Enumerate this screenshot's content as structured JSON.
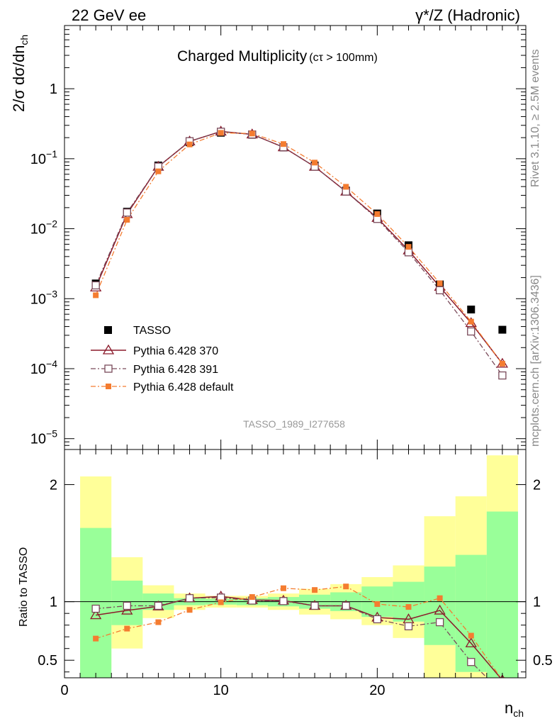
{
  "header": {
    "left_label": "22 GeV ee",
    "right_label": "γ*/Z (Hadronic)"
  },
  "side_labels": {
    "rivet": "Rivet 3.1.10, ≥ 2.5M events",
    "mcplots": "mcplots.cern.ch [arXiv:1306.3436]"
  },
  "watermark": "TASSO_1989_I277658",
  "colors": {
    "data": "#000000",
    "pythia_370": "#8b1a2b",
    "pythia_391": "#7a4a5a",
    "pythia_default": "#f47c30",
    "band_inner": "#99ff99",
    "band_outer": "#ffff99"
  },
  "chart_data": [
    {
      "type": "line",
      "title": "Charged Multiplicity",
      "title_suffix": "(cτ > 100mm)",
      "ylabel": "2/σ dσ/dn",
      "ylabel_sub": "ch",
      "y_scale": "log",
      "ylim": [
        7e-06,
        8
      ],
      "xlim": [
        0,
        29.5
      ],
      "y_ticks": [
        {
          "base": "10",
          "exp": "−5",
          "value": 1e-05
        },
        {
          "base": "10",
          "exp": "−4",
          "value": 0.0001
        },
        {
          "base": "10",
          "exp": "−3",
          "value": 0.001
        },
        {
          "base": "10",
          "exp": "−2",
          "value": 0.01
        },
        {
          "base": "10",
          "exp": "−1",
          "value": 0.1
        },
        {
          "base": "1",
          "exp": "",
          "value": 1
        }
      ],
      "x": [
        2,
        4,
        6,
        8,
        10,
        12,
        14,
        16,
        18,
        20,
        22,
        24,
        26,
        28
      ],
      "series": [
        {
          "name": "TASSO",
          "style": "data",
          "values": [
            0.00165,
            0.0175,
            0.08,
            0.172,
            0.235,
            0.22,
            0.145,
            0.08,
            0.035,
            0.0165,
            0.0058,
            0.0016,
            0.0007,
            0.00036
          ]
        },
        {
          "name": "Pythia 6.428 370",
          "style": "p370",
          "values": [
            0.00145,
            0.0162,
            0.077,
            0.177,
            0.245,
            0.223,
            0.146,
            0.077,
            0.034,
            0.0143,
            0.0049,
            0.00148,
            0.00045,
            0.000118
          ]
        },
        {
          "name": "Pythia 6.428 391",
          "style": "p391",
          "values": [
            0.00155,
            0.017,
            0.077,
            0.178,
            0.243,
            0.222,
            0.146,
            0.077,
            0.034,
            0.0138,
            0.0046,
            0.00132,
            0.00034,
            8e-05
          ]
        },
        {
          "name": "Pythia 6.428 default",
          "style": "pdef",
          "values": [
            0.00112,
            0.0134,
            0.066,
            0.16,
            0.234,
            0.229,
            0.162,
            0.088,
            0.0397,
            0.0162,
            0.0055,
            0.00166,
            0.00047,
            0.000118
          ]
        }
      ]
    },
    {
      "type": "line",
      "ylabel": "Ratio to TASSO",
      "xlabel": "n",
      "xlabel_sub": "ch",
      "ylim": [
        0.35,
        2.3
      ],
      "xlim": [
        0,
        29.5
      ],
      "y_ticks": [
        {
          "label": "0.5",
          "value": 0.5
        },
        {
          "label": "1",
          "value": 1
        },
        {
          "label": "2",
          "value": 2
        }
      ],
      "x_ticks": [
        {
          "label": "0",
          "value": 0
        },
        {
          "label": "10",
          "value": 10
        },
        {
          "label": "20",
          "value": 20
        }
      ],
      "bins": [
        [
          1,
          3
        ],
        [
          3,
          5
        ],
        [
          5,
          7
        ],
        [
          7,
          9
        ],
        [
          9,
          11
        ],
        [
          11,
          13
        ],
        [
          13,
          15
        ],
        [
          15,
          17
        ],
        [
          17,
          19
        ],
        [
          19,
          21
        ],
        [
          21,
          23
        ],
        [
          23,
          25
        ],
        [
          25,
          27
        ],
        [
          27,
          29
        ]
      ],
      "band_inner": [
        [
          0.35,
          1.63
        ],
        [
          0.8,
          1.18
        ],
        [
          0.93,
          1.07
        ],
        [
          0.97,
          1.03
        ],
        [
          0.975,
          1.025
        ],
        [
          0.97,
          1.03
        ],
        [
          0.96,
          1.04
        ],
        [
          0.94,
          1.06
        ],
        [
          0.92,
          1.08
        ],
        [
          0.87,
          1.13
        ],
        [
          0.83,
          1.17
        ],
        [
          0.63,
          1.3
        ],
        [
          0.4,
          1.4
        ],
        [
          0.35,
          1.77
        ]
      ],
      "band_outer": [
        [
          0.43,
          2.07
        ],
        [
          0.6,
          1.38
        ],
        [
          0.86,
          1.14
        ],
        [
          0.93,
          1.07
        ],
        [
          0.95,
          1.05
        ],
        [
          0.95,
          1.05
        ],
        [
          0.93,
          1.07
        ],
        [
          0.89,
          1.11
        ],
        [
          0.85,
          1.15
        ],
        [
          0.8,
          1.21
        ],
        [
          0.69,
          1.31
        ],
        [
          0.35,
          1.73
        ],
        [
          0.35,
          1.9
        ],
        [
          0.35,
          2.25
        ]
      ],
      "series": [
        {
          "name": "Pythia 6.428 370",
          "style": "p370",
          "values": [
            0.885,
            0.925,
            0.96,
            1.03,
            1.045,
            1.015,
            1.01,
            0.965,
            0.965,
            0.865,
            0.85,
            0.925,
            0.645,
            0.33
          ]
        },
        {
          "name": "Pythia 6.428 391",
          "style": "p391",
          "values": [
            0.94,
            0.965,
            0.965,
            1.03,
            1.035,
            1.01,
            1.005,
            0.965,
            0.965,
            0.85,
            0.79,
            0.825,
            0.485,
            0.22
          ]
        },
        {
          "name": "Pythia 6.428 default",
          "style": "pdef",
          "values": [
            0.685,
            0.77,
            0.825,
            0.93,
            0.995,
            1.04,
            1.115,
            1.1,
            1.13,
            0.98,
            0.955,
            1.03,
            0.71,
            0.33
          ]
        }
      ]
    }
  ]
}
